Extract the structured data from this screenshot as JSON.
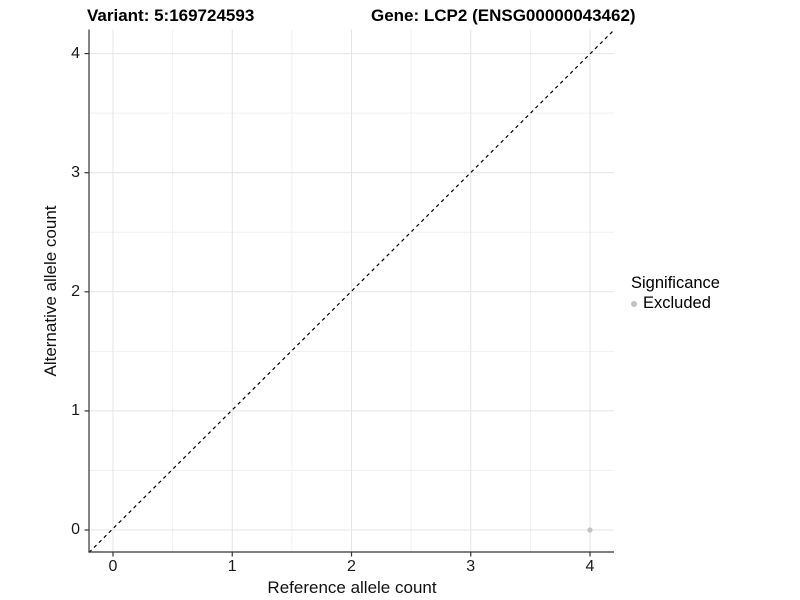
{
  "header": {
    "variant_title": "Variant: 5:169724593",
    "gene_title": "Gene: LCP2 (ENSG00000043462)"
  },
  "chart_data": {
    "type": "scatter",
    "title": "Variant: 5:169724593   Gene: LCP2 (ENSG00000043462)",
    "xlabel": "Reference allele count",
    "ylabel": "Alternative allele count",
    "xlim": [
      -0.2,
      4.2
    ],
    "ylim": [
      -0.2,
      4.2
    ],
    "x_ticks": [
      0,
      1,
      2,
      3,
      4
    ],
    "y_ticks": [
      0,
      1,
      2,
      3,
      4
    ],
    "x_minor_ticks": [
      0.5,
      1.5,
      2.5,
      3.5
    ],
    "y_minor_ticks": [
      0.5,
      1.5,
      2.5,
      3.5
    ],
    "grid": "major_and_minor",
    "series": [
      {
        "name": "Excluded",
        "color": "#c2c2c2",
        "points": [
          {
            "x": 4,
            "y": 0
          }
        ]
      }
    ],
    "reference_line": {
      "kind": "identity y=x",
      "from": [
        -0.2,
        -0.2
      ],
      "to": [
        4.2,
        4.2
      ],
      "style": "dashed",
      "color": "#000000"
    },
    "legend": {
      "title": "Significance",
      "position": "right",
      "entries": [
        {
          "label": "Excluded",
          "color": "#c2c2c2"
        }
      ]
    }
  },
  "colors": {
    "background": "#ffffff",
    "axis_line": "#333333",
    "tick_mark": "#333333",
    "grid_major": "#e4e4e4",
    "grid_minor": "#f1f1f1",
    "point": "#c2c2c2",
    "dashed_line": "#000000",
    "text": "#000000"
  }
}
